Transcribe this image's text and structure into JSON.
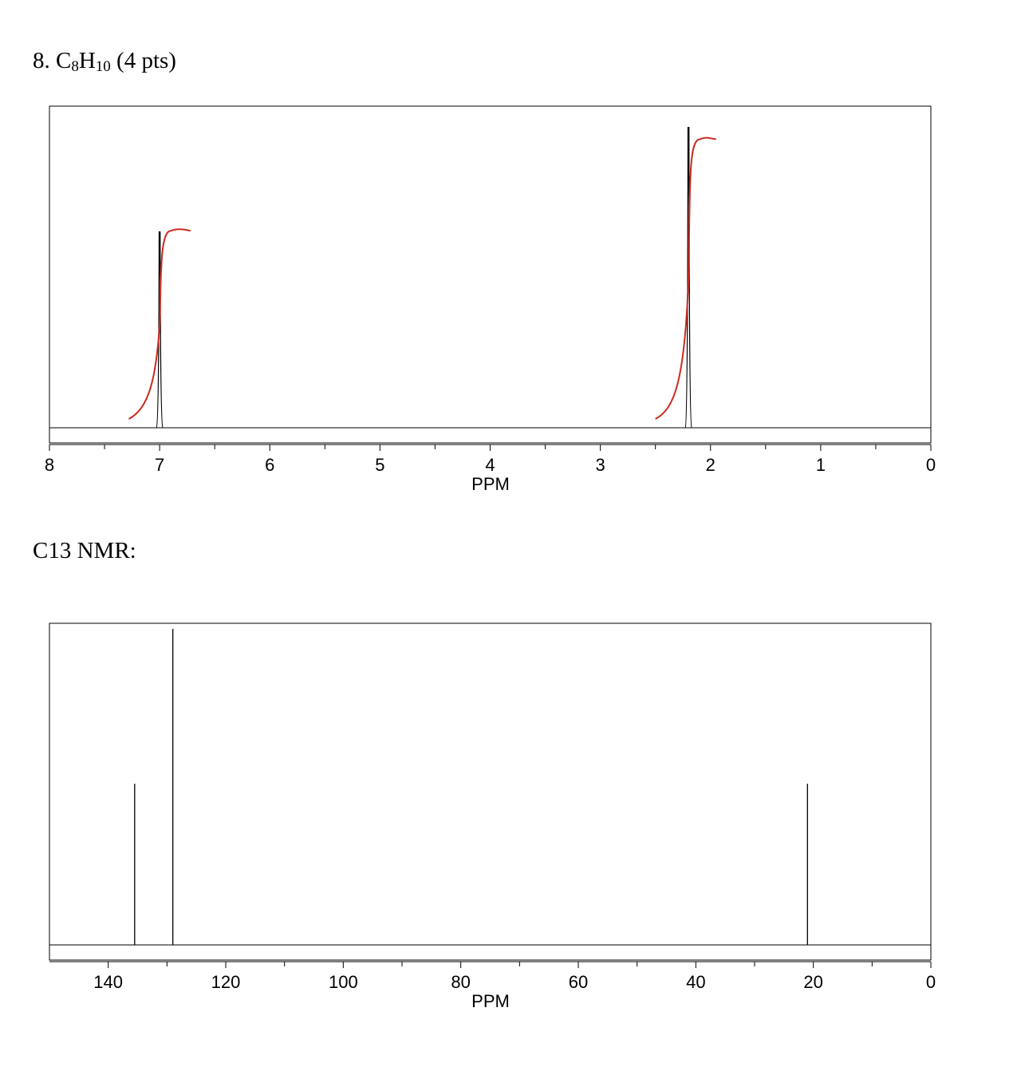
{
  "problem": {
    "number": "8.",
    "formula_c": "C",
    "formula_c_sub": "8",
    "formula_h": "H",
    "formula_h_sub": "10",
    "points": "(4 pts)"
  },
  "c13_heading": "C13 NMR:",
  "colors": {
    "spectrum": "#000000",
    "integral": "#cc2a1f",
    "frame": "#000000"
  },
  "chart_data": [
    {
      "type": "line",
      "title": "",
      "xlabel": "PPM",
      "ylabel": "",
      "x_reversed": true,
      "xlim": [
        8,
        0
      ],
      "ylim": [
        0,
        1
      ],
      "tick_labels": [
        "8",
        "7",
        "6",
        "5",
        "4",
        "3",
        "2",
        "1",
        "0"
      ],
      "major_ticks": [
        8,
        7,
        6,
        5,
        4,
        3,
        2,
        1,
        0
      ],
      "minor_ticks": [
        7.5,
        6.5,
        5.5,
        4.5,
        3.5,
        2.5,
        1.5,
        0.5
      ],
      "peaks": [
        {
          "ppm": 7.0,
          "height": 0.62
        },
        {
          "ppm": 2.2,
          "height": 0.95
        }
      ],
      "integrals": [
        {
          "ppm": 7.0,
          "start_ppm": 7.28,
          "end_ppm": 6.72,
          "rise": 0.62
        },
        {
          "ppm": 2.2,
          "start_ppm": 2.5,
          "end_ppm": 1.95,
          "rise": 0.92
        }
      ],
      "grid": false
    },
    {
      "type": "bar",
      "title": "",
      "xlabel": "PPM",
      "ylabel": "",
      "x_reversed": true,
      "xlim": [
        150,
        0
      ],
      "ylim": [
        0,
        1
      ],
      "tick_labels": [
        "140",
        "120",
        "100",
        "80",
        "60",
        "40",
        "20",
        "0"
      ],
      "major_ticks": [
        140,
        120,
        100,
        80,
        60,
        40,
        20,
        0
      ],
      "minor_ticks": [
        130,
        110,
        90,
        70,
        50,
        30,
        10
      ],
      "peaks": [
        {
          "ppm": 135.5,
          "height": 0.51
        },
        {
          "ppm": 129.0,
          "height": 1.0
        },
        {
          "ppm": 21.0,
          "height": 0.51
        }
      ],
      "grid": false
    }
  ]
}
